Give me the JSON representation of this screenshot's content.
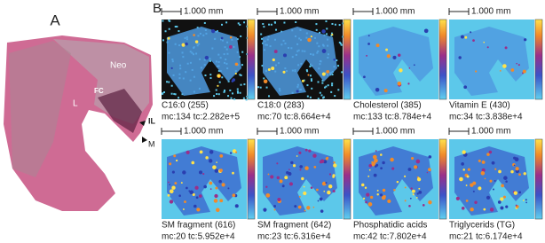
{
  "panel_a": {
    "label": "A",
    "annotations": {
      "neo": "Neo",
      "fc": "FC",
      "l": "L",
      "il": "IL",
      "m": "M"
    }
  },
  "panel_b": {
    "label": "B",
    "scale_bar": "1.000 mm",
    "images": [
      {
        "name": "C16:0 (255)",
        "stats": "mc:134 tc:2.282e+5"
      },
      {
        "name": "C18:0 (283)",
        "stats": "mc:70 tc:8.664e+4"
      },
      {
        "name": "Cholesterol (385)",
        "stats": "mc:133 tc:8.784e+4"
      },
      {
        "name": "Vitamin E (430)",
        "stats": "mc:34 tc:3.838e+4"
      },
      {
        "name": "SM fragment (616)",
        "stats": "mc:20 tc:5.952e+4"
      },
      {
        "name": "SM fragment (642)",
        "stats": "mc:23 tc:6.316e+4"
      },
      {
        "name": "Phosphatidic acids",
        "stats": "mc:42 tc:7.802e+4"
      },
      {
        "name": "Triglycerids (TG)",
        "stats": "mc:21 tc:6.174e+4"
      }
    ]
  }
}
